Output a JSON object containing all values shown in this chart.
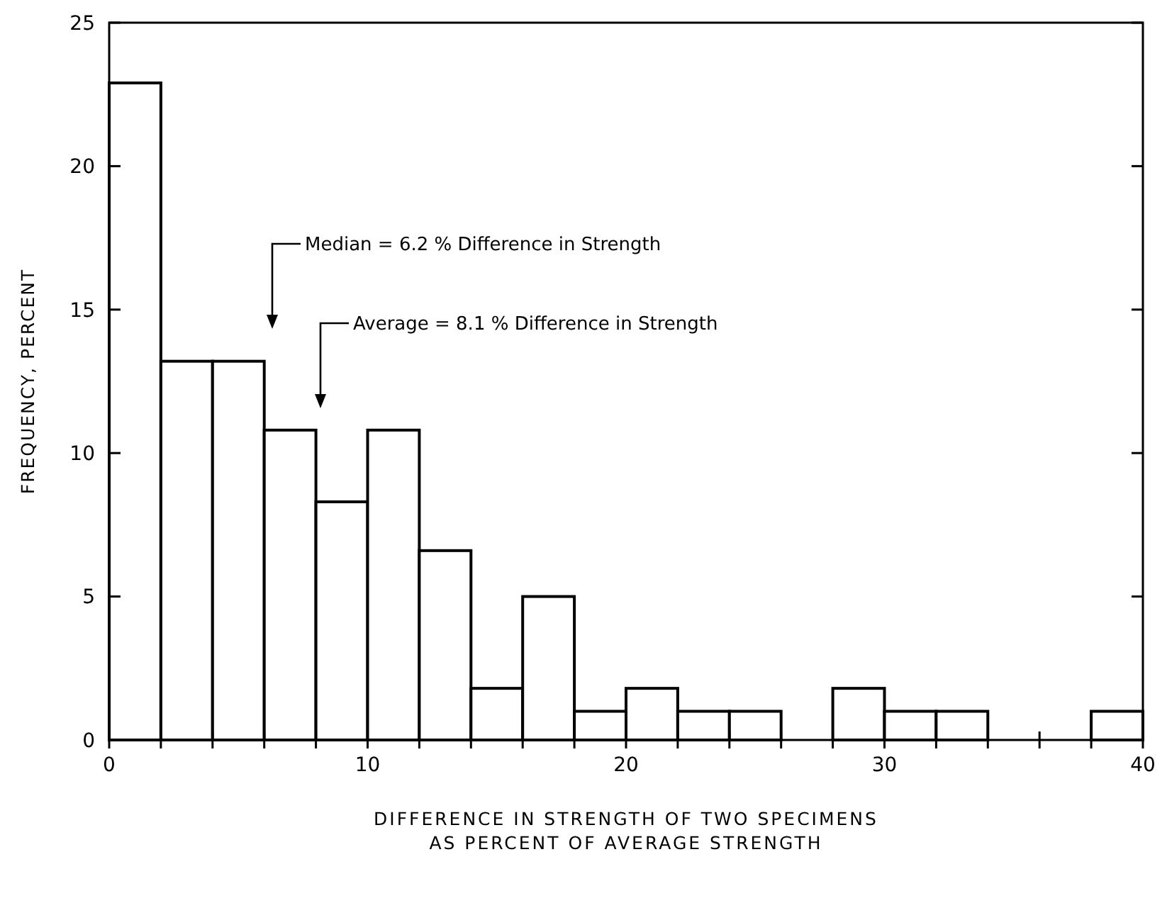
{
  "chart_data": {
    "type": "histogram",
    "xlabel": "DIFFERENCE IN STRENGTH OF TWO SPECIMENS\nAS PERCENT OF AVERAGE STRENGTH",
    "ylabel": "FREQUENCY, PERCENT",
    "bins": [
      0,
      2,
      4,
      6,
      8,
      10,
      12,
      14,
      16,
      18,
      20,
      22,
      24,
      26,
      28,
      30,
      32,
      34,
      36,
      38,
      40
    ],
    "values": [
      22.9,
      13.2,
      13.2,
      10.8,
      8.3,
      10.8,
      6.6,
      1.8,
      5,
      1,
      1.8,
      1,
      1,
      0,
      1.8,
      1,
      1,
      0,
      0,
      1
    ],
    "color": "#ffffff",
    "xlim": [
      0,
      40
    ],
    "xticks": [
      0,
      {
        "value": 2,
        "label": null
      },
      {
        "value": 4,
        "label": null
      },
      {
        "value": 6,
        "label": null
      },
      {
        "value": 8,
        "label": null
      },
      10,
      {
        "value": 12,
        "label": null
      },
      {
        "value": 14,
        "label": null
      },
      {
        "value": 16,
        "label": null
      },
      {
        "value": 18,
        "label": null
      },
      20,
      {
        "value": 22,
        "label": null
      },
      {
        "value": 24,
        "label": null
      },
      {
        "value": 26,
        "label": null
      },
      {
        "value": 28,
        "label": null
      },
      30,
      {
        "value": 32,
        "label": null
      },
      {
        "value": 34,
        "label": null
      },
      {
        "value": 36,
        "label": null
      },
      {
        "value": 38,
        "label": null
      },
      40
    ],
    "ylim": [
      0,
      25
    ],
    "yticks": [
      0,
      5,
      10,
      15,
      20,
      25
    ],
    "annotations": [
      "Median = 6.2 % Difference in Strength",
      "Average = 8.1 % Difference in Strength"
    ]
  }
}
